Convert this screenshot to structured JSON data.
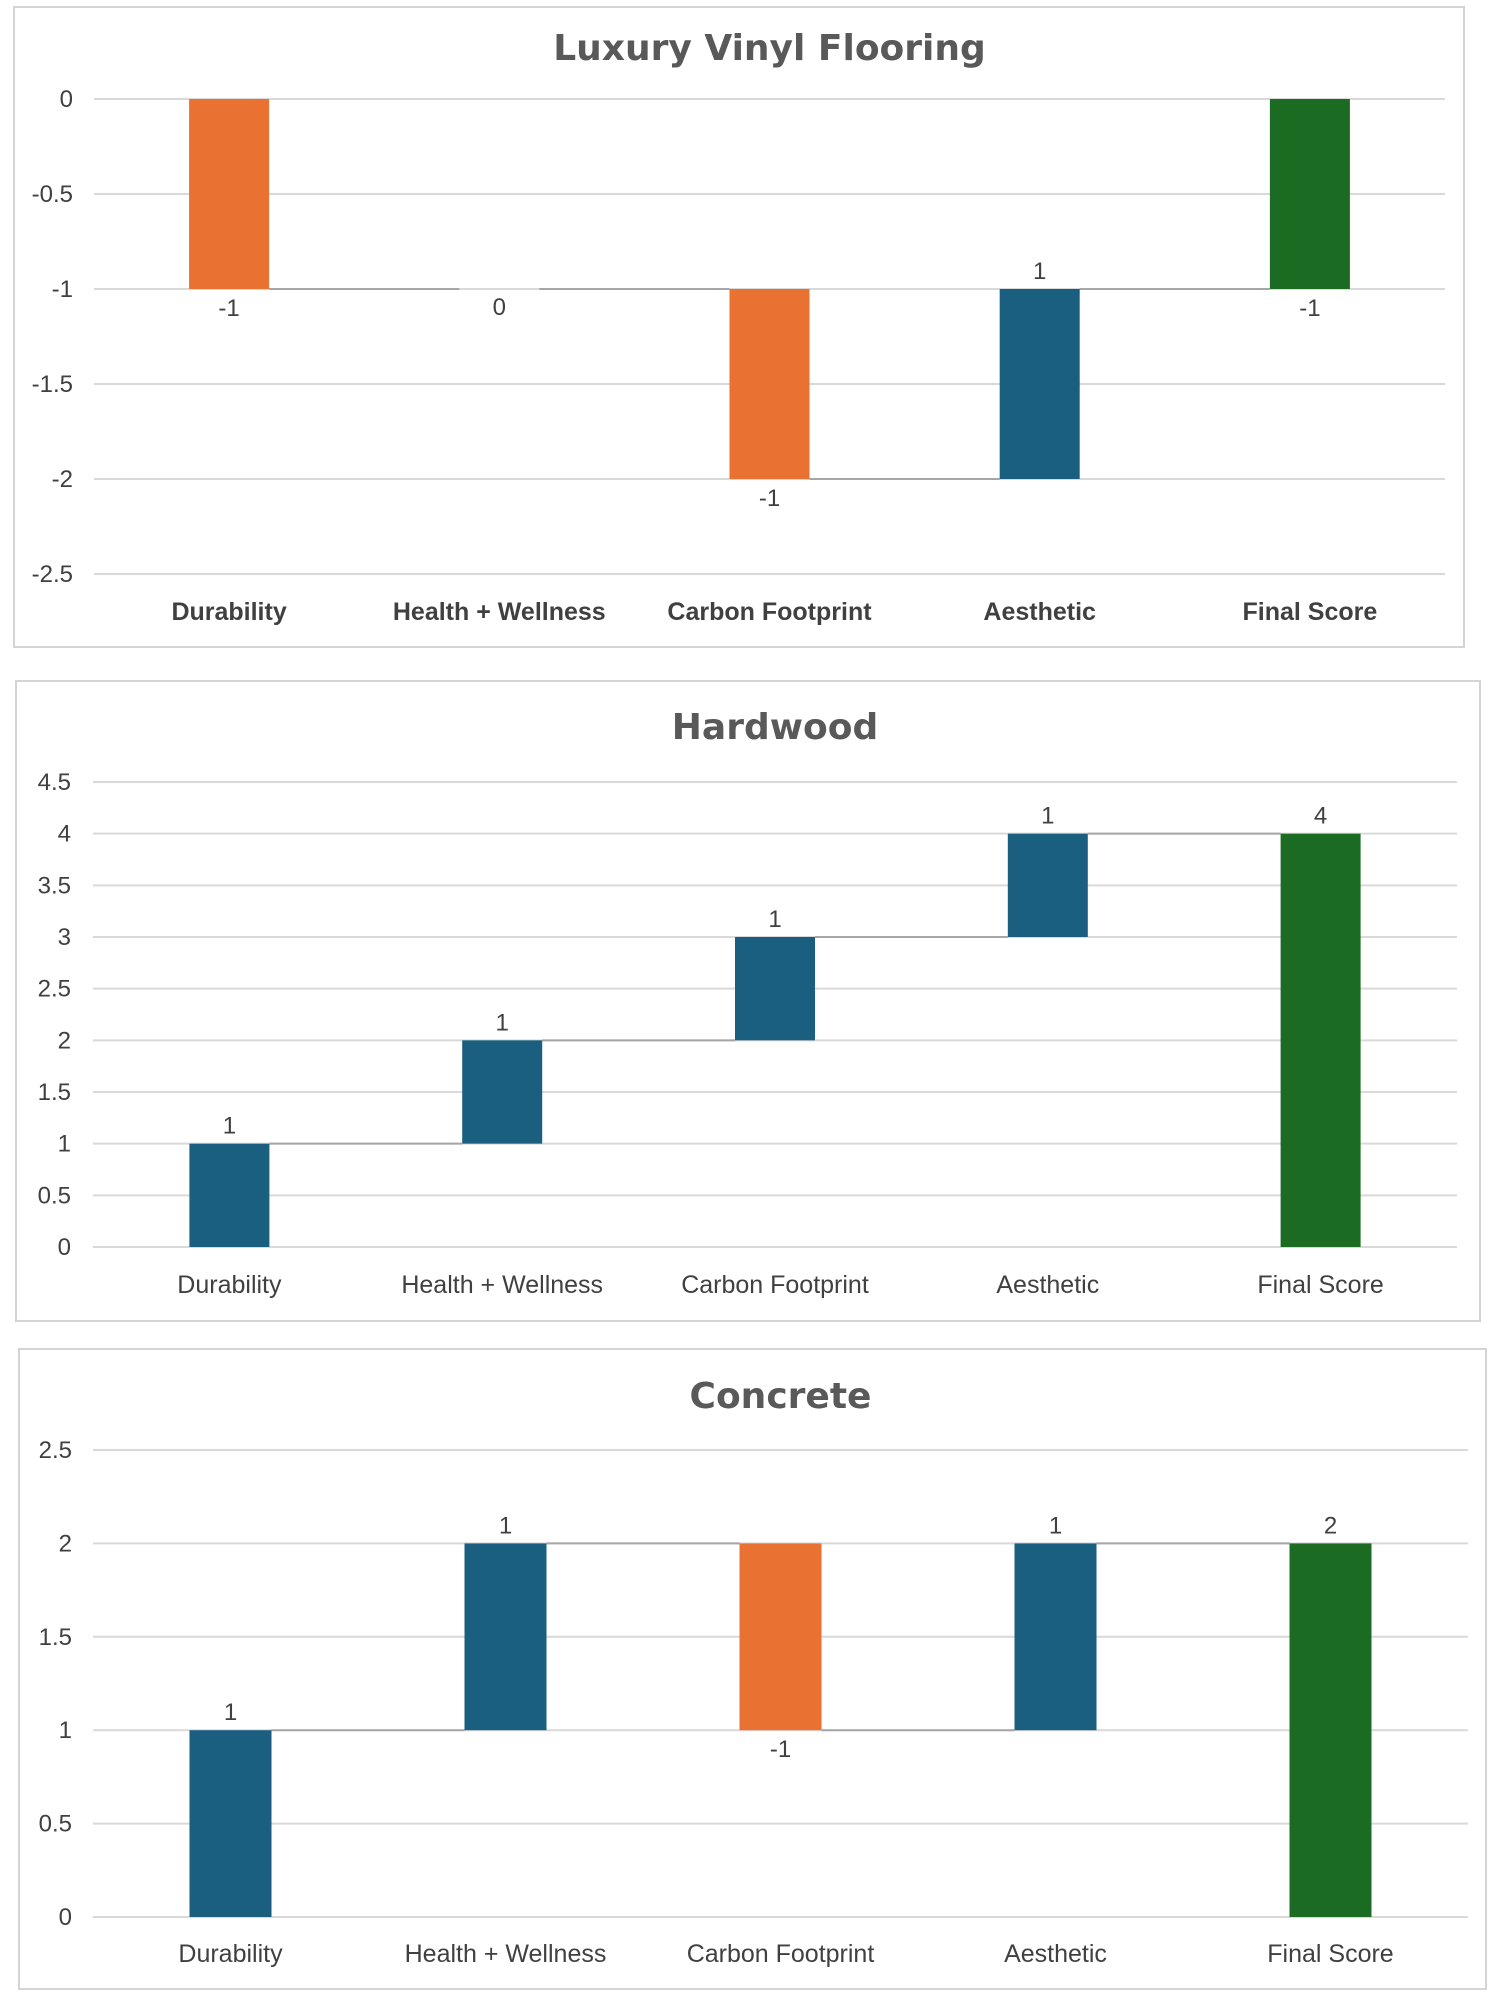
{
  "chart_data": [
    {
      "type": "waterfall",
      "title": "Luxury Vinyl Flooring",
      "categories": [
        "Durability",
        "Health + Wellness",
        "Carbon Footprint",
        "Aesthetic",
        "Final Score"
      ],
      "values": [
        -1,
        0,
        -1,
        1,
        -1
      ],
      "bar_kinds": [
        "decrease",
        "none",
        "decrease",
        "increase",
        "total"
      ],
      "data_labels": [
        "-1",
        "0",
        "-1",
        "1",
        "-1"
      ],
      "ylim": [
        -2.5,
        0
      ],
      "yticks": [
        "0",
        "-0.5",
        "-1",
        "-1.5",
        "-2",
        "-2.5"
      ],
      "bold_categories": true,
      "xlabel": "",
      "ylabel": "",
      "grid": true,
      "legend": "none"
    },
    {
      "type": "waterfall",
      "title": "Hardwood",
      "categories": [
        "Durability",
        "Health + Wellness",
        "Carbon Footprint",
        "Aesthetic",
        "Final Score"
      ],
      "values": [
        1,
        1,
        1,
        1,
        4
      ],
      "bar_kinds": [
        "increase",
        "increase",
        "increase",
        "increase",
        "total"
      ],
      "data_labels": [
        "1",
        "1",
        "1",
        "1",
        "4"
      ],
      "ylim": [
        0,
        4.5
      ],
      "yticks": [
        "4.5",
        "4",
        "3.5",
        "3",
        "2.5",
        "2",
        "1.5",
        "1",
        "0.5",
        "0"
      ],
      "bold_categories": false,
      "xlabel": "",
      "ylabel": "",
      "grid": true,
      "legend": "none"
    },
    {
      "type": "waterfall",
      "title": "Concrete",
      "categories": [
        "Durability",
        "Health + Wellness",
        "Carbon Footprint",
        "Aesthetic",
        "Final Score"
      ],
      "values": [
        1,
        1,
        -1,
        1,
        2
      ],
      "bar_kinds": [
        "increase",
        "increase",
        "decrease",
        "increase",
        "total"
      ],
      "data_labels": [
        "1",
        "1",
        "-1",
        "1",
        "2"
      ],
      "ylim": [
        0,
        2.5
      ],
      "yticks": [
        "2.5",
        "2",
        "1.5",
        "1",
        "0.5",
        "0"
      ],
      "bold_categories": false,
      "xlabel": "",
      "ylabel": "",
      "grid": true,
      "legend": "none"
    }
  ],
  "colors": {
    "increase": "#1a5f80",
    "decrease": "#e97132",
    "total": "#1b6b22",
    "grid": "#d9d9d9",
    "connector": "#a6a6a6"
  }
}
